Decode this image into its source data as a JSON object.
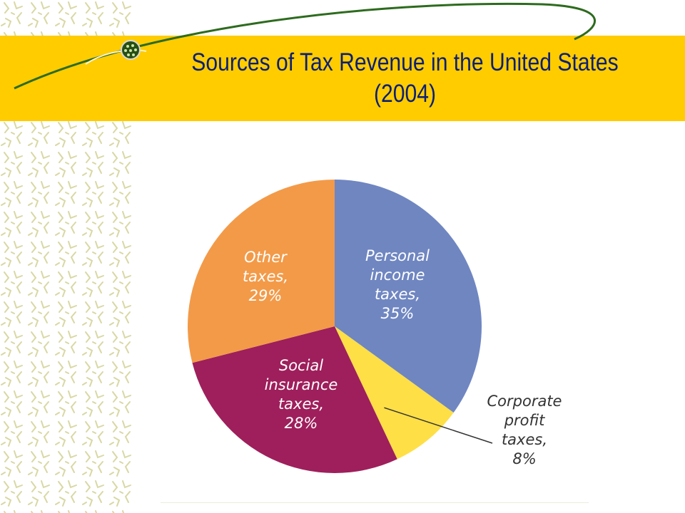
{
  "title": {
    "line1": "Sources of Tax Revenue in the United States",
    "line2": "(2004)"
  },
  "colors": {
    "title_band": "#ffcc00",
    "title_text": "#0b1f75",
    "personal": "#6f86c1",
    "corporate": "#fedf46",
    "social": "#9e1f5b",
    "other": "#f39a48"
  },
  "chart_data": {
    "type": "pie",
    "title": "Sources of Tax Revenue in the United States (2004)",
    "slices": [
      {
        "key": "personal",
        "label_lines": [
          "Personal",
          "income",
          "taxes,",
          "35%"
        ],
        "value": 35
      },
      {
        "key": "corporate",
        "label_lines": [
          "Corporate",
          "profit",
          "taxes,",
          "8%"
        ],
        "value": 8
      },
      {
        "key": "social",
        "label_lines": [
          "Social",
          "insurance",
          "taxes,",
          "28%"
        ],
        "value": 28
      },
      {
        "key": "other",
        "label_lines": [
          "Other",
          "taxes,",
          "29%"
        ],
        "value": 29
      }
    ]
  }
}
